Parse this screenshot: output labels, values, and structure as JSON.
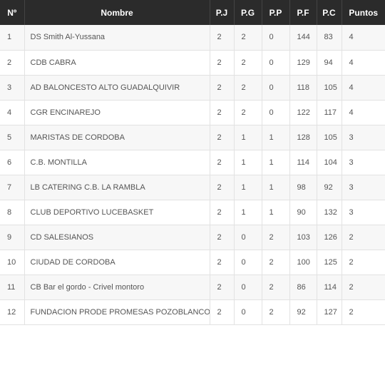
{
  "headers": {
    "pos": "Nº",
    "name": "Nombre",
    "pj": "P.J",
    "pg": "P.G",
    "pp": "P.P",
    "pf": "P.F",
    "pc": "P.C",
    "pts": "Puntos"
  },
  "rows": [
    {
      "pos": "1",
      "name": "DS Smith Al-Yussana",
      "pj": "2",
      "pg": "2",
      "pp": "0",
      "pf": "144",
      "pc": "83",
      "pts": "4"
    },
    {
      "pos": "2",
      "name": "CDB CABRA",
      "pj": "2",
      "pg": "2",
      "pp": "0",
      "pf": "129",
      "pc": "94",
      "pts": "4"
    },
    {
      "pos": "3",
      "name": "AD BALONCESTO ALTO GUADALQUIVIR",
      "pj": "2",
      "pg": "2",
      "pp": "0",
      "pf": "118",
      "pc": "105",
      "pts": "4"
    },
    {
      "pos": "4",
      "name": "CGR ENCINAREJO",
      "pj": "2",
      "pg": "2",
      "pp": "0",
      "pf": "122",
      "pc": "117",
      "pts": "4"
    },
    {
      "pos": "5",
      "name": "MARISTAS DE CORDOBA",
      "pj": "2",
      "pg": "1",
      "pp": "1",
      "pf": "128",
      "pc": "105",
      "pts": "3"
    },
    {
      "pos": "6",
      "name": "C.B. MONTILLA",
      "pj": "2",
      "pg": "1",
      "pp": "1",
      "pf": "114",
      "pc": "104",
      "pts": "3"
    },
    {
      "pos": "7",
      "name": "LB CATERING C.B. LA RAMBLA",
      "pj": "2",
      "pg": "1",
      "pp": "1",
      "pf": "98",
      "pc": "92",
      "pts": "3"
    },
    {
      "pos": "8",
      "name": "CLUB DEPORTIVO LUCEBASKET",
      "pj": "2",
      "pg": "1",
      "pp": "1",
      "pf": "90",
      "pc": "132",
      "pts": "3"
    },
    {
      "pos": "9",
      "name": "CD SALESIANOS",
      "pj": "2",
      "pg": "0",
      "pp": "2",
      "pf": "103",
      "pc": "126",
      "pts": "2"
    },
    {
      "pos": "10",
      "name": "CIUDAD DE CORDOBA",
      "pj": "2",
      "pg": "0",
      "pp": "2",
      "pf": "100",
      "pc": "125",
      "pts": "2"
    },
    {
      "pos": "11",
      "name": "CB Bar el gordo - Crivel montoro",
      "pj": "2",
      "pg": "0",
      "pp": "2",
      "pf": "86",
      "pc": "114",
      "pts": "2"
    },
    {
      "pos": "12",
      "name": "FUNDACION PRODE PROMESAS POZOBLANCO",
      "pj": "2",
      "pg": "0",
      "pp": "2",
      "pf": "92",
      "pc": "127",
      "pts": "2"
    }
  ],
  "colors": {
    "header_bg": "#2b2b2b",
    "header_text": "#ffffff",
    "row_odd": "#f7f7f7",
    "row_even": "#ffffff",
    "cell_text": "#555555"
  }
}
